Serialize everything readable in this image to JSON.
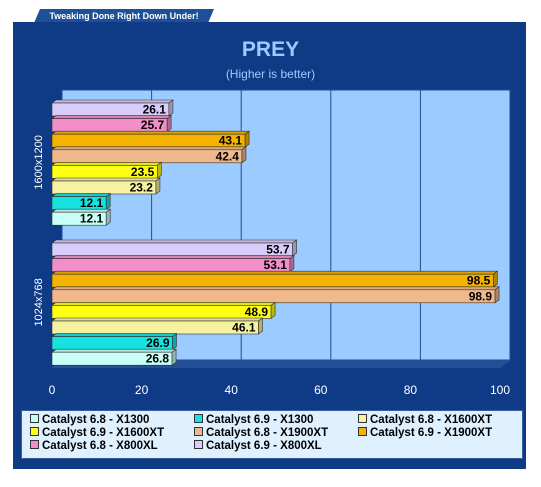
{
  "banner": {
    "text": "Tweaking Done Right Down Under!"
  },
  "chart_data": {
    "type": "bar",
    "orientation": "horizontal",
    "title": "PREY",
    "subtitle": "(Higher is better)",
    "categories": [
      "1600x1200",
      "1024x768"
    ],
    "xlim": [
      0,
      100
    ],
    "x_ticks": [
      "0",
      "20",
      "40",
      "60",
      "80",
      "100"
    ],
    "grid": true,
    "legend_position": "bottom",
    "series": [
      {
        "name": "Catalyst 6.8 - X1300",
        "color": "#c8fff6",
        "values": [
          12.1,
          26.8
        ]
      },
      {
        "name": "Catalyst 6.9 - X1300",
        "color": "#16e3df",
        "values": [
          12.1,
          26.9
        ]
      },
      {
        "name": "Catalyst 6.8 - X1600XT",
        "color": "#f7f2a0",
        "values": [
          23.2,
          46.1
        ]
      },
      {
        "name": "Catalyst 6.9 - X1600XT",
        "color": "#ffff12",
        "values": [
          23.5,
          48.9
        ]
      },
      {
        "name": "Catalyst 6.8 - X1900XT",
        "color": "#f1b98b",
        "values": [
          42.4,
          98.9
        ]
      },
      {
        "name": "Catalyst 6.9 - X1900XT",
        "color": "#f5b300",
        "values": [
          43.1,
          98.5
        ]
      },
      {
        "name": "Catalyst 6.8 - X800XL",
        "color": "#f28fcb",
        "values": [
          25.7,
          53.1
        ]
      },
      {
        "name": "Catalyst 6.9 - X800XL",
        "color": "#d8cdfa",
        "values": [
          26.1,
          53.7
        ]
      }
    ]
  },
  "legend": {
    "rows": [
      [
        0,
        1,
        2
      ],
      [
        3,
        4,
        5
      ],
      [
        6,
        7
      ]
    ]
  }
}
